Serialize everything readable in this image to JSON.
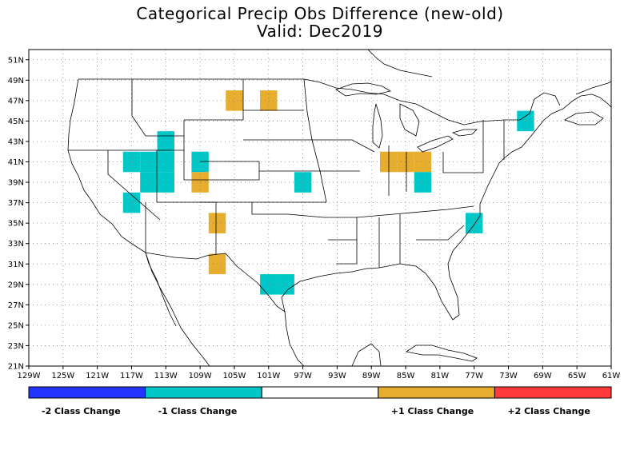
{
  "title": "Categorical Precip Obs Difference (new-old)",
  "subtitle": "Valid: Dec2019",
  "colors": {
    "minus2": "#2233ff",
    "minus1": "#00c8c8",
    "zero": "#ffffff",
    "plus1": "#e6ad2e",
    "plus2": "#ff3a3a"
  },
  "axes": {
    "lat_labels": [
      "51N",
      "49N",
      "47N",
      "45N",
      "43N",
      "41N",
      "39N",
      "37N",
      "35N",
      "33N",
      "31N",
      "29N",
      "27N",
      "25N",
      "23N",
      "21N"
    ],
    "lon_labels": [
      "129W",
      "125W",
      "121W",
      "117W",
      "113W",
      "109W",
      "105W",
      "101W",
      "97W",
      "93W",
      "89W",
      "85W",
      "81W",
      "77W",
      "73W",
      "69W",
      "65W",
      "61W"
    ],
    "lon_range": [
      -129,
      -61
    ],
    "lat_range": [
      21,
      52
    ]
  },
  "legend": [
    {
      "label": "-2 Class Change",
      "color": "minus2"
    },
    {
      "label": "-1 Class Change",
      "color": "minus1"
    },
    {
      "label": "",
      "color": "zero"
    },
    {
      "label": "+1 Class Change",
      "color": "plus1"
    },
    {
      "label": "+2 Class Change",
      "color": "plus2"
    }
  ],
  "cells": [
    {
      "lon": -105,
      "lat": 47,
      "class": 1
    },
    {
      "lon": -101,
      "lat": 47,
      "class": 1
    },
    {
      "lon": -71,
      "lat": 45,
      "class": -1
    },
    {
      "lon": -113,
      "lat": 43,
      "class": -1
    },
    {
      "lon": -117,
      "lat": 41,
      "class": -1
    },
    {
      "lon": -115,
      "lat": 41,
      "class": -1
    },
    {
      "lon": -113,
      "lat": 41,
      "class": -1
    },
    {
      "lon": -109,
      "lat": 41,
      "class": -1
    },
    {
      "lon": -87,
      "lat": 41,
      "class": 1
    },
    {
      "lon": -85,
      "lat": 41,
      "class": 1
    },
    {
      "lon": -83,
      "lat": 41,
      "class": 1
    },
    {
      "lon": -115,
      "lat": 39,
      "class": -1
    },
    {
      "lon": -113,
      "lat": 39,
      "class": -1
    },
    {
      "lon": -109,
      "lat": 39,
      "class": 1
    },
    {
      "lon": -97,
      "lat": 39,
      "class": -1
    },
    {
      "lon": -83,
      "lat": 39,
      "class": -1
    },
    {
      "lon": -117,
      "lat": 37,
      "class": -1
    },
    {
      "lon": -107,
      "lat": 35,
      "class": 1
    },
    {
      "lon": -77,
      "lat": 35,
      "class": -1
    },
    {
      "lon": -107,
      "lat": 31,
      "class": 1
    },
    {
      "lon": -101,
      "lat": 29,
      "class": -1
    },
    {
      "lon": -99,
      "lat": 29,
      "class": -1
    }
  ]
}
